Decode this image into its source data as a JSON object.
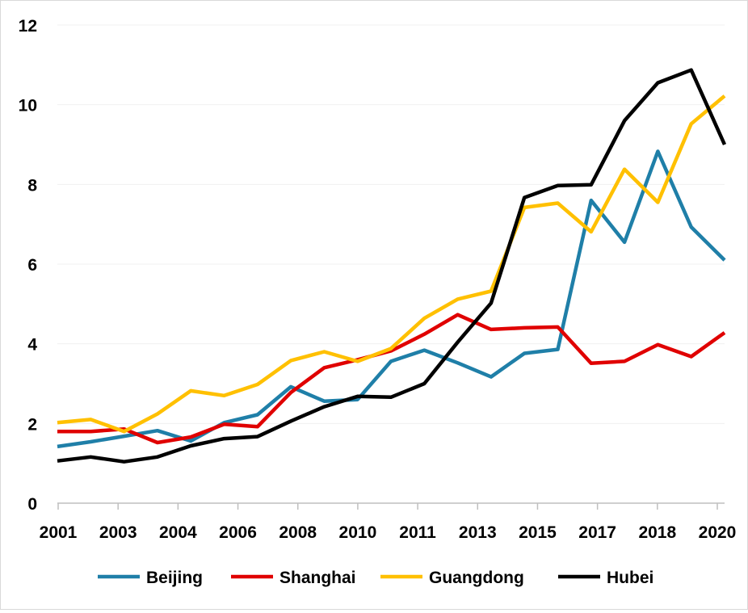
{
  "chart_data": {
    "type": "line",
    "x_tick_labels": [
      "2001",
      "2003",
      "2004",
      "2006",
      "2008",
      "2010",
      "2011",
      "2013",
      "2015",
      "2017",
      "2018",
      "2020"
    ],
    "y_tick_labels": [
      "0",
      "2",
      "4",
      "6",
      "8",
      "10",
      "12"
    ],
    "ylim": [
      0,
      12
    ],
    "grid": true,
    "legend_position": "bottom",
    "series": [
      {
        "name": "Beijing",
        "color": "#1f7fa8",
        "values": [
          1.42,
          1.54,
          1.68,
          1.82,
          1.56,
          2.02,
          2.22,
          2.92,
          2.56,
          2.6,
          3.56,
          3.84,
          3.52,
          3.17,
          3.76,
          3.86,
          7.6,
          6.55,
          8.83,
          6.93,
          6.1
        ]
      },
      {
        "name": "Shanghai",
        "color": "#e00000",
        "values": [
          1.8,
          1.8,
          1.86,
          1.52,
          1.66,
          1.98,
          1.92,
          2.78,
          3.4,
          3.6,
          3.82,
          4.24,
          4.73,
          4.36,
          4.4,
          4.42,
          3.51,
          3.56,
          3.98,
          3.68,
          4.28
        ]
      },
      {
        "name": "Guangdong",
        "color": "#ffc000",
        "values": [
          2.02,
          2.1,
          1.8,
          2.24,
          2.82,
          2.7,
          2.98,
          3.58,
          3.8,
          3.56,
          3.88,
          4.64,
          5.12,
          5.32,
          7.42,
          7.53,
          6.81,
          8.38,
          7.55,
          9.52,
          10.22
        ]
      },
      {
        "name": "Hubei",
        "color": "#000000",
        "values": [
          1.06,
          1.16,
          1.04,
          1.16,
          1.44,
          1.62,
          1.67,
          2.06,
          2.42,
          2.68,
          2.66,
          3.0,
          4.04,
          5.02,
          7.67,
          7.97,
          7.99,
          9.6,
          10.55,
          10.87,
          9.0
        ]
      }
    ]
  }
}
